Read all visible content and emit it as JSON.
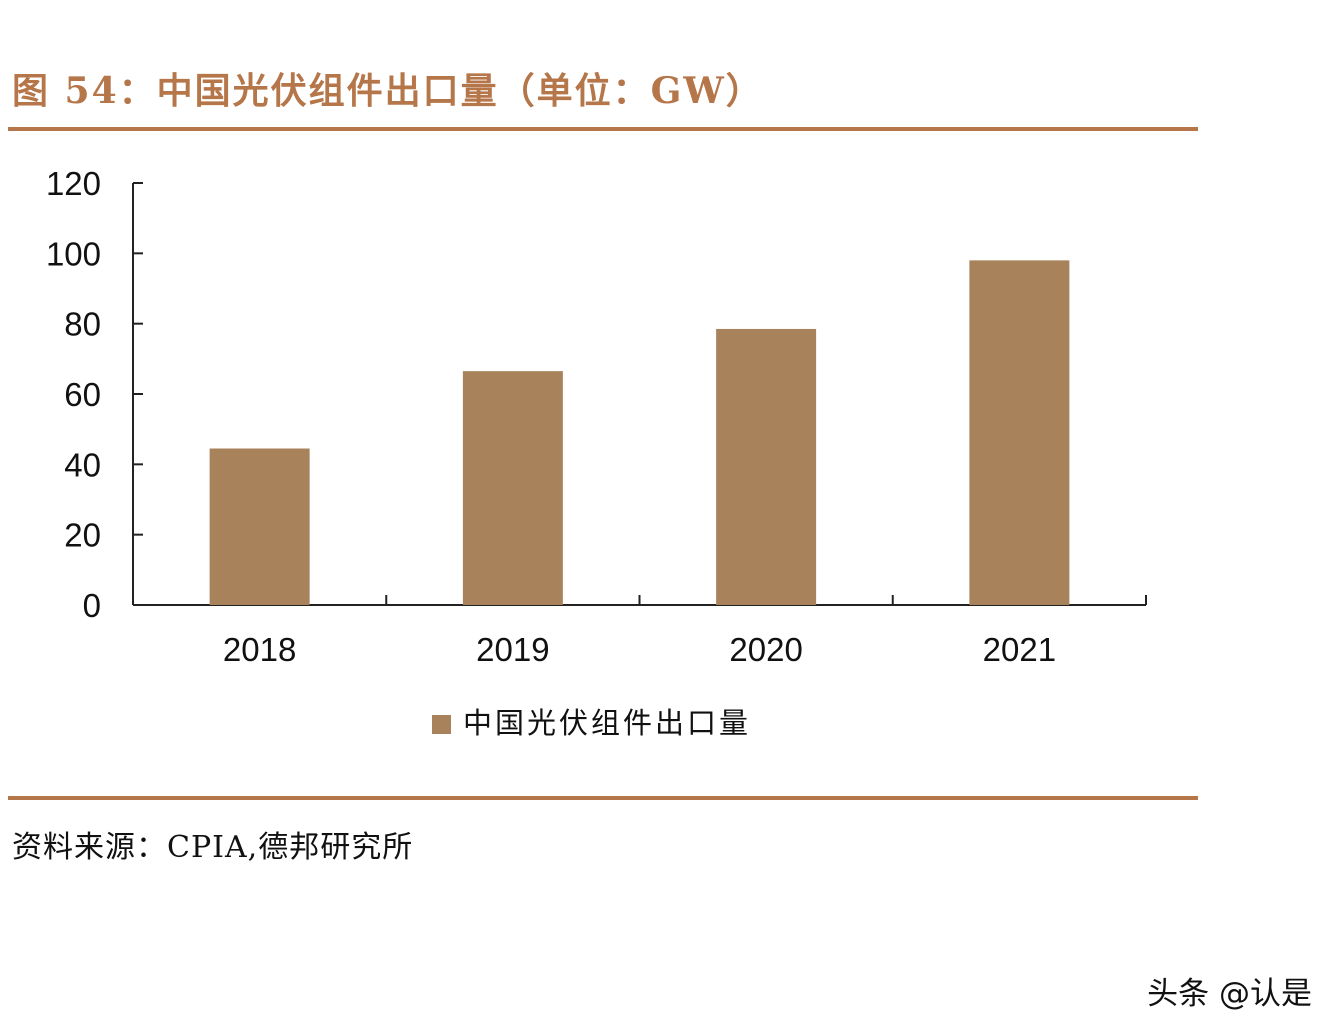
{
  "title": "图 54：中国光伏组件出口量（单位：GW）",
  "source": "资料来源：CPIA,德邦研究所",
  "watermark": "头条 @认是",
  "colors": {
    "accent": "#b5764a",
    "bar": "#a8825a",
    "axis": "#222222",
    "text": "#111111"
  },
  "chart_data": {
    "type": "bar",
    "title": "",
    "xlabel": "",
    "ylabel": "",
    "categories": [
      "2018",
      "2019",
      "2020",
      "2021"
    ],
    "series": [
      {
        "name": "中国光伏组件出口量",
        "values": [
          44.5,
          66.5,
          78.5,
          98
        ]
      }
    ],
    "ylim": [
      0,
      120
    ],
    "yticks": [
      0,
      20,
      40,
      60,
      80,
      100,
      120
    ],
    "grid": false,
    "legend_position": "bottom"
  }
}
